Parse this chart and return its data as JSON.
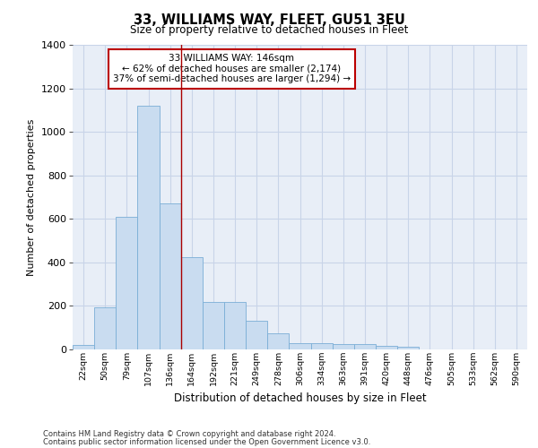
{
  "title": "33, WILLIAMS WAY, FLEET, GU51 3EU",
  "subtitle": "Size of property relative to detached houses in Fleet",
  "xlabel": "Distribution of detached houses by size in Fleet",
  "ylabel": "Number of detached properties",
  "categories": [
    "22sqm",
    "50sqm",
    "79sqm",
    "107sqm",
    "136sqm",
    "164sqm",
    "192sqm",
    "221sqm",
    "249sqm",
    "278sqm",
    "306sqm",
    "334sqm",
    "363sqm",
    "391sqm",
    "420sqm",
    "448sqm",
    "476sqm",
    "505sqm",
    "533sqm",
    "562sqm",
    "590sqm"
  ],
  "values": [
    20,
    195,
    610,
    1120,
    670,
    425,
    220,
    220,
    130,
    75,
    30,
    30,
    25,
    25,
    15,
    13,
    0,
    0,
    0,
    0,
    0
  ],
  "bar_color": "#c9dcf0",
  "bar_edge_color": "#7aaed6",
  "vline_color": "#aa0000",
  "vline_x_index": 4,
  "annotation_text": "33 WILLIAMS WAY: 146sqm\n← 62% of detached houses are smaller (2,174)\n37% of semi-detached houses are larger (1,294) →",
  "annotation_box_color": "white",
  "annotation_box_edge_color": "#bb0000",
  "ylim": [
    0,
    1400
  ],
  "yticks": [
    0,
    200,
    400,
    600,
    800,
    1000,
    1200,
    1400
  ],
  "background_color": "#e8eef7",
  "grid_color": "#c8d4e8",
  "footer_line1": "Contains HM Land Registry data © Crown copyright and database right 2024.",
  "footer_line2": "Contains public sector information licensed under the Open Government Licence v3.0."
}
